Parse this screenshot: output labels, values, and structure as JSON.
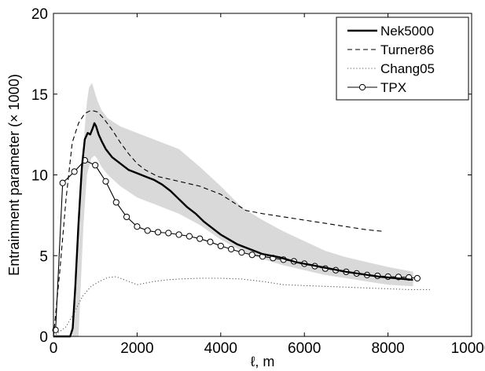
{
  "chart_data": {
    "type": "line",
    "xlabel": "ℓ, m",
    "ylabel": "Entrainment parameter (× 1000)",
    "xlim": [
      0,
      10000
    ],
    "ylim": [
      0,
      20
    ],
    "xticks": [
      "0",
      "2000",
      "4000",
      "6000",
      "8000",
      "10000"
    ],
    "yticks": [
      "0",
      "5",
      "10",
      "15",
      "20"
    ],
    "grid": false,
    "legend_position": "top-right",
    "band": {
      "upper": [
        [
          450,
          0
        ],
        [
          560,
          4
        ],
        [
          650,
          9
        ],
        [
          720,
          12
        ],
        [
          800,
          14.5
        ],
        [
          850,
          15.4
        ],
        [
          920,
          15.7
        ],
        [
          980,
          15.2
        ],
        [
          1050,
          14.6
        ],
        [
          1150,
          14
        ],
        [
          1300,
          13.5
        ],
        [
          1600,
          13
        ],
        [
          2000,
          12.6
        ],
        [
          2500,
          12.1
        ],
        [
          3000,
          11.6
        ],
        [
          3500,
          10.5
        ],
        [
          4000,
          9.3
        ],
        [
          4500,
          8
        ],
        [
          5000,
          7.2
        ],
        [
          5500,
          6.5
        ],
        [
          6000,
          5.9
        ],
        [
          6500,
          5.3
        ],
        [
          7000,
          4.9
        ],
        [
          7500,
          4.6
        ],
        [
          8000,
          4.3
        ],
        [
          8600,
          4.0
        ]
      ],
      "lower": [
        [
          8600,
          3.1
        ],
        [
          8000,
          3.2
        ],
        [
          7500,
          3.4
        ],
        [
          7000,
          3.6
        ],
        [
          6500,
          3.8
        ],
        [
          6000,
          4.1
        ],
        [
          5500,
          4.4
        ],
        [
          5000,
          4.8
        ],
        [
          4500,
          5.3
        ],
        [
          4000,
          6.0
        ],
        [
          3500,
          6.9
        ],
        [
          3000,
          7.6
        ],
        [
          2500,
          8.1
        ],
        [
          2000,
          8.6
        ],
        [
          1600,
          9.3
        ],
        [
          1300,
          10
        ],
        [
          1150,
          10.5
        ],
        [
          1050,
          11
        ],
        [
          980,
          11.2
        ],
        [
          900,
          11
        ],
        [
          800,
          10
        ],
        [
          720,
          7
        ],
        [
          650,
          3
        ],
        [
          600,
          0
        ]
      ]
    },
    "series": [
      {
        "name": "Nek5000",
        "style": "solid-thick",
        "color": "#000000",
        "x": [
          0,
          400,
          460,
          520,
          600,
          680,
          750,
          820,
          880,
          940,
          980,
          1020,
          1080,
          1150,
          1250,
          1400,
          1600,
          1800,
          2000,
          2200,
          2400,
          2600,
          2800,
          3000,
          3200,
          3400,
          3600,
          3800,
          4000,
          4200,
          4400,
          4600,
          4800,
          5000,
          5400,
          5800,
          6200,
          6600,
          7000,
          7400,
          7800,
          8200,
          8600
        ],
        "y": [
          0,
          0,
          0.5,
          3,
          7,
          10.5,
          12.2,
          12.6,
          12.5,
          12.9,
          13.2,
          13.0,
          12.5,
          12.1,
          11.6,
          11.1,
          10.7,
          10.3,
          10.1,
          9.9,
          9.7,
          9.4,
          9.0,
          8.5,
          8.0,
          7.6,
          7.1,
          6.7,
          6.3,
          6.0,
          5.7,
          5.5,
          5.3,
          5.1,
          4.9,
          4.6,
          4.4,
          4.2,
          4.0,
          3.85,
          3.7,
          3.6,
          3.5
        ]
      },
      {
        "name": "Turner86",
        "style": "dashed",
        "color": "#000000",
        "x": [
          0,
          150,
          300,
          450,
          600,
          750,
          900,
          1050,
          1200,
          1400,
          1600,
          1800,
          2000,
          2200,
          2500,
          3000,
          3500,
          4000,
          4300,
          4600,
          5000,
          5500,
          6000,
          6500,
          7000,
          7500,
          7900
        ],
        "y": [
          0,
          4,
          8.5,
          12,
          13.2,
          13.8,
          14.0,
          13.9,
          13.5,
          12.8,
          12.0,
          11.3,
          10.7,
          10.3,
          9.9,
          9.6,
          9.3,
          8.8,
          8.3,
          7.8,
          7.6,
          7.4,
          7.2,
          7.0,
          6.8,
          6.6,
          6.5
        ]
      },
      {
        "name": "Chang05",
        "style": "dotted",
        "color": "#555555",
        "x": [
          0,
          100,
          300,
          500,
          700,
          900,
          1100,
          1300,
          1500,
          1800,
          2000,
          2200,
          2400,
          2700,
          3000,
          3500,
          4000,
          4500,
          5000,
          5500,
          6000,
          6500,
          7000,
          7500,
          8000,
          8500,
          9000
        ],
        "y": [
          0,
          0.2,
          0.6,
          1.5,
          2.5,
          3.1,
          3.4,
          3.65,
          3.7,
          3.4,
          3.2,
          3.3,
          3.4,
          3.5,
          3.55,
          3.6,
          3.6,
          3.55,
          3.4,
          3.2,
          3.15,
          3.1,
          3.05,
          3.0,
          2.95,
          2.9,
          2.9
        ]
      },
      {
        "name": "TPX",
        "style": "solid-thin-markers",
        "color": "#000000",
        "x": [
          50,
          220,
          500,
          750,
          1000,
          1250,
          1500,
          1750,
          2000,
          2250,
          2500,
          2750,
          3000,
          3250,
          3500,
          3750,
          4000,
          4250,
          4500,
          4750,
          5000,
          5250,
          5500,
          5750,
          6000,
          6250,
          6500,
          6750,
          7000,
          7250,
          7500,
          7750,
          8000,
          8250,
          8500,
          8700
        ],
        "y": [
          0.4,
          9.5,
          10.2,
          10.9,
          10.6,
          9.6,
          8.3,
          7.4,
          6.8,
          6.55,
          6.45,
          6.4,
          6.3,
          6.2,
          6.05,
          5.85,
          5.6,
          5.4,
          5.2,
          5.05,
          4.95,
          4.85,
          4.75,
          4.65,
          4.5,
          4.35,
          4.2,
          4.1,
          4.0,
          3.9,
          3.8,
          3.75,
          3.7,
          3.68,
          3.65,
          3.6
        ]
      }
    ]
  }
}
